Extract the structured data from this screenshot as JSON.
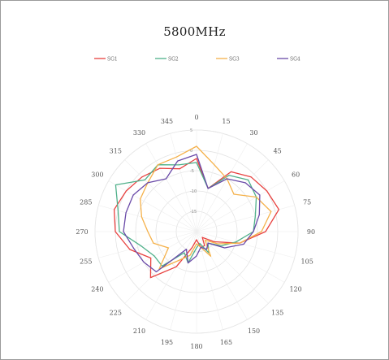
{
  "chart_data": {
    "type": "radar",
    "title": "5800MHz",
    "theta_labels": [
      "0",
      "15",
      "30",
      "45",
      "60",
      "75",
      "90",
      "105",
      "120",
      "135",
      "150",
      "165",
      "180",
      "195",
      "210",
      "225",
      "240",
      "255",
      "270",
      "285",
      "300",
      "315",
      "330",
      "345"
    ],
    "radial_ticks": [
      5,
      0,
      -5,
      -10,
      -15
    ],
    "rlim": [
      -20,
      5
    ],
    "legend_position": "top",
    "series": [
      {
        "name": "SG1",
        "color": "#e8413f",
        "values": [
          -2,
          -9,
          -3,
          -1,
          0,
          1,
          -3,
          -9,
          -15,
          -18,
          -16,
          -16,
          -18,
          -16,
          -10,
          -4,
          -7,
          -3,
          0,
          1,
          0,
          -1,
          -2,
          -4
        ]
      },
      {
        "name": "SG2",
        "color": "#4fb08a",
        "values": [
          -3,
          -9,
          -4,
          -2,
          -3,
          -5,
          -6,
          -10,
          -13,
          -16,
          -14,
          -17,
          -16,
          -12,
          -14,
          -8,
          -8,
          -6,
          -1,
          0,
          3,
          -2,
          -1,
          -3
        ]
      },
      {
        "name": "SG3",
        "color": "#f5b14a",
        "values": [
          1,
          -3,
          -5,
          -7,
          -3,
          -1,
          -4,
          -9,
          -14,
          -17,
          -13,
          -16,
          -17,
          -14,
          -12,
          -7,
          -12,
          -9,
          -8,
          -6,
          -4,
          -3,
          -1,
          -1
        ]
      },
      {
        "name": "SG4",
        "color": "#6a4aa8",
        "values": [
          -1,
          -9,
          -5,
          -3,
          -2,
          -4,
          -6,
          -8,
          -12,
          -16,
          -15,
          -16,
          -14,
          -12,
          -15,
          -6,
          -5,
          -4,
          -2,
          -2,
          -2,
          -3,
          -5,
          -2
        ]
      }
    ]
  }
}
